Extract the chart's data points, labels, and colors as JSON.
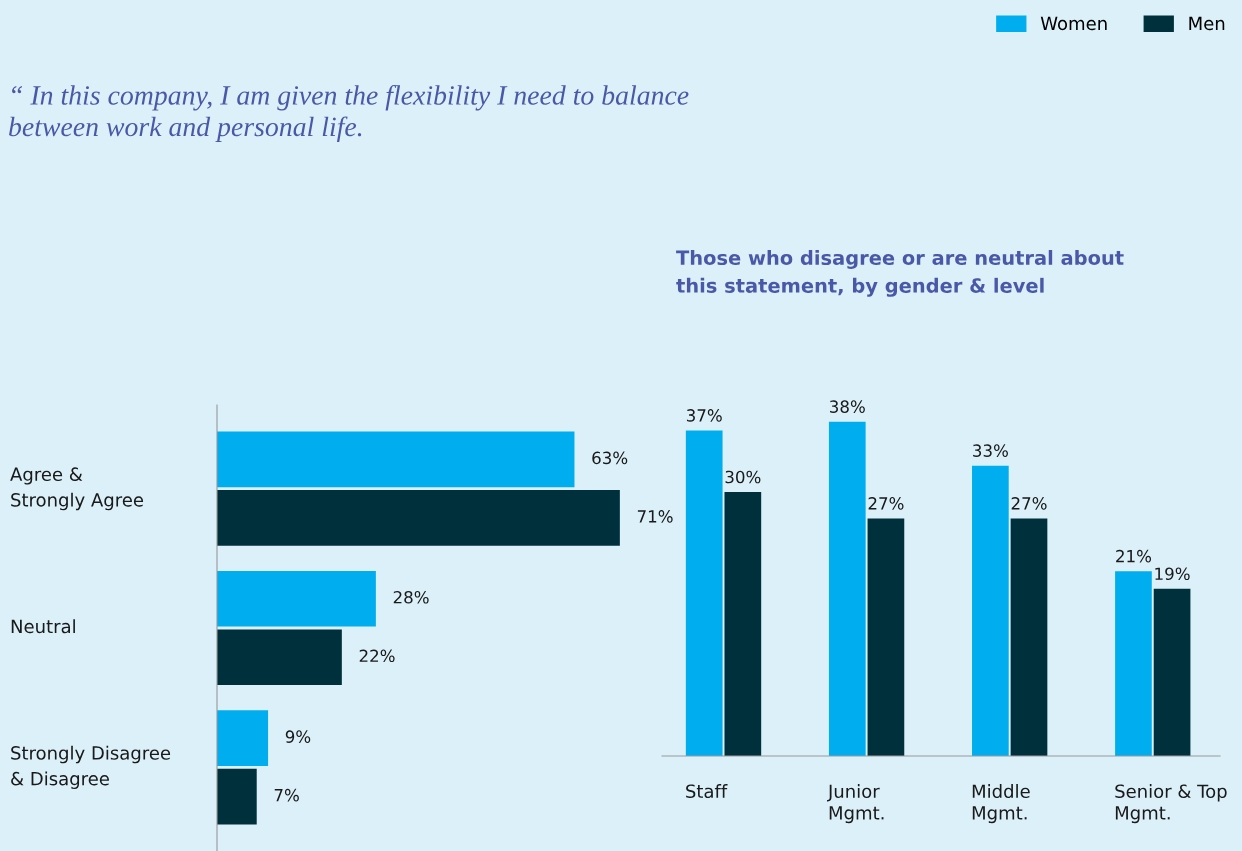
{
  "chart_data": [
    {
      "type": "bar",
      "orientation": "horizontal",
      "title": "“ In this company, I am given the flexibility I need to balance\nbetween work and personal life.",
      "categories": [
        "Agree &\nStrongly Agree",
        "Neutral",
        "Strongly Disagree\n& Disagree"
      ],
      "series": [
        {
          "color": "#00aeef",
          "values": [
            63,
            28,
            9
          ],
          "value_labels": [
            "63%",
            "28%",
            "9%"
          ]
        },
        {
          "color": "#00303c",
          "values": [
            71,
            22,
            7
          ],
          "value_labels": [
            "71%",
            "22%",
            "7%"
          ]
        }
      ],
      "tick_labels": "y",
      "grid": false,
      "legend": false
    },
    {
      "type": "bar",
      "title": "Those who disagree or are neutral about\nthis statement, by gender & level",
      "categories": [
        "Staff",
        "Junior\nMgmt.",
        "Middle\nMgmt.",
        "Senior & Top\nMgmt."
      ],
      "series": [
        {
          "name": "Women",
          "color": "#00aeef",
          "values": [
            37,
            38,
            33,
            21
          ],
          "value_labels": [
            "37%",
            "38%",
            "33%",
            "21%"
          ]
        },
        {
          "name": "Men",
          "color": "#00303c",
          "values": [
            30,
            27,
            27,
            19
          ],
          "value_labels": [
            "30%",
            "27%",
            "27%",
            "19%"
          ]
        }
      ],
      "tick_labels": "x",
      "grid": false,
      "legend": "top right"
    }
  ]
}
